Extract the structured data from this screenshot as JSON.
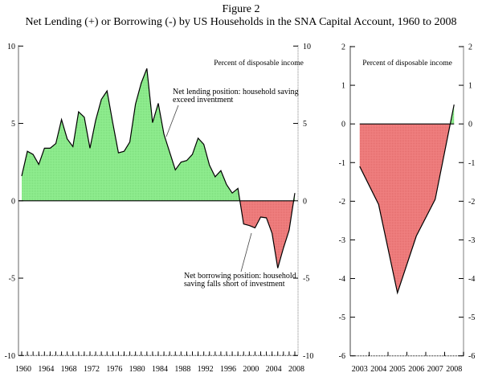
{
  "figure": {
    "label": "Figure 2",
    "title": "Net Lending (+) or Borrowing (-) by US Households in the SNA Capital Account, 1960 to 2008"
  },
  "colors": {
    "positive_fill": "#90EE90",
    "negative_fill": "#F08080",
    "line": "#000000",
    "right_axis": "#999999"
  },
  "chart_data": [
    {
      "type": "area",
      "title": "",
      "ylabel": "Percent of disposable income",
      "xlabel": "",
      "xlim": [
        1960,
        2008
      ],
      "ylim": [
        -10,
        10
      ],
      "yticks": [
        10,
        5,
        0,
        -5,
        -10
      ],
      "ytick_labels": [
        "10",
        "5",
        "0",
        "-5",
        "-10"
      ],
      "xtick_labels": [
        "1960",
        "1964",
        "1968",
        "1972",
        "1976",
        "1980",
        "1984",
        "1988",
        "1992",
        "1996",
        "2000",
        "2004",
        "2008"
      ],
      "grid": false,
      "x": [
        1960,
        1961,
        1962,
        1963,
        1964,
        1965,
        1966,
        1967,
        1968,
        1969,
        1970,
        1971,
        1972,
        1973,
        1974,
        1975,
        1976,
        1977,
        1978,
        1979,
        1980,
        1981,
        1982,
        1983,
        1984,
        1985,
        1986,
        1987,
        1988,
        1989,
        1990,
        1991,
        1992,
        1993,
        1994,
        1995,
        1996,
        1997,
        1998,
        1999,
        2000,
        2001,
        2002,
        2003,
        2004,
        2005,
        2006,
        2007,
        2008
      ],
      "series": [
        {
          "name": "Net lending (+) or borrowing (-)",
          "values": [
            1.6,
            3.2,
            3.0,
            2.35,
            3.4,
            3.4,
            3.7,
            5.25,
            4.0,
            3.5,
            5.75,
            5.4,
            3.4,
            5.2,
            6.55,
            7.1,
            5.05,
            3.1,
            3.2,
            3.8,
            6.25,
            7.6,
            8.55,
            5.05,
            6.3,
            4.3,
            3.15,
            2.0,
            2.5,
            2.6,
            3.0,
            4.05,
            3.65,
            2.3,
            1.55,
            1.95,
            1.05,
            0.5,
            0.8,
            -1.5,
            -1.6,
            -1.75,
            -1.05,
            -1.1,
            -2.1,
            -4.35,
            -3.05,
            -1.9,
            0.5
          ]
        }
      ],
      "annotations": [
        {
          "text_lines": [
            "Net lending position: household saving",
            "exceed inventment"
          ],
          "points_to_year": 1985
        },
        {
          "text_lines": [
            "Net borrowing position: household",
            "saving falls short of investment"
          ],
          "points_to_year": 2001
        }
      ]
    },
    {
      "type": "area",
      "title": "",
      "ylabel": "Percent of disposable income",
      "xlabel": "",
      "xlim": [
        2003,
        2008
      ],
      "ylim": [
        -6,
        2
      ],
      "yticks": [
        2,
        1,
        0,
        -1,
        -2,
        -3,
        -4,
        -5,
        -6
      ],
      "ytick_labels": [
        "2",
        "1",
        "0",
        "-1",
        "-2",
        "-3",
        "-4",
        "-5",
        "-6"
      ],
      "xtick_labels": [
        "2003",
        "2004",
        "2005",
        "2006",
        "2007",
        "2008"
      ],
      "grid": false,
      "x": [
        2003,
        2004,
        2005,
        2006,
        2007,
        2008
      ],
      "series": [
        {
          "name": "Net lending (+) or borrowing (-)",
          "values": [
            -1.1,
            -2.08,
            -4.37,
            -2.9,
            -1.95,
            0.5
          ]
        }
      ]
    }
  ]
}
